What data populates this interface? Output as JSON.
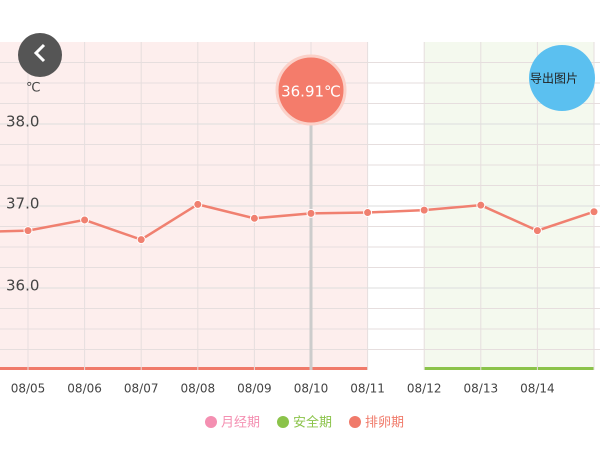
{
  "chart_data": {
    "type": "line",
    "unit": "℃",
    "categories": [
      null,
      "08/05",
      "08/06",
      "08/07",
      "08/08",
      "08/09",
      "08/10",
      "08/11",
      "08/12",
      "08/13",
      "08/14",
      null
    ],
    "series": [
      {
        "color": "#f08070",
        "values": [
          36.68,
          36.7,
          36.83,
          36.59,
          37.02,
          36.85,
          36.91,
          36.92,
          36.95,
          37.01,
          36.7,
          36.93
        ]
      }
    ],
    "ylim": [
      35.0,
      39.0
    ],
    "yticks": [
      {
        "value": 36,
        "label": "36.0"
      },
      {
        "value": 37,
        "label": "37.0"
      },
      {
        "value": 38,
        "label": "38.0"
      }
    ],
    "minor_yticks": [
      35.25,
      35.5,
      35.75,
      36.25,
      36.5,
      36.75,
      37.25,
      37.5,
      37.75,
      38.25,
      38.5,
      38.75
    ],
    "grid": true,
    "tooltip": {
      "index": 6,
      "label": "36.91℃"
    },
    "legend": [
      {
        "name": "月经期",
        "color": "#f48fb1"
      },
      {
        "name": "安全期",
        "color": "#8bc34a",
        "fill": "#f4f9ee",
        "ranges": [
          [
            8,
            11
          ]
        ]
      },
      {
        "name": "排卵期",
        "color": "#f07a6a",
        "fill": "#fdeeed",
        "ranges": [
          [
            0,
            7
          ]
        ]
      }
    ]
  },
  "ui": {
    "export_button": "导出图片"
  }
}
